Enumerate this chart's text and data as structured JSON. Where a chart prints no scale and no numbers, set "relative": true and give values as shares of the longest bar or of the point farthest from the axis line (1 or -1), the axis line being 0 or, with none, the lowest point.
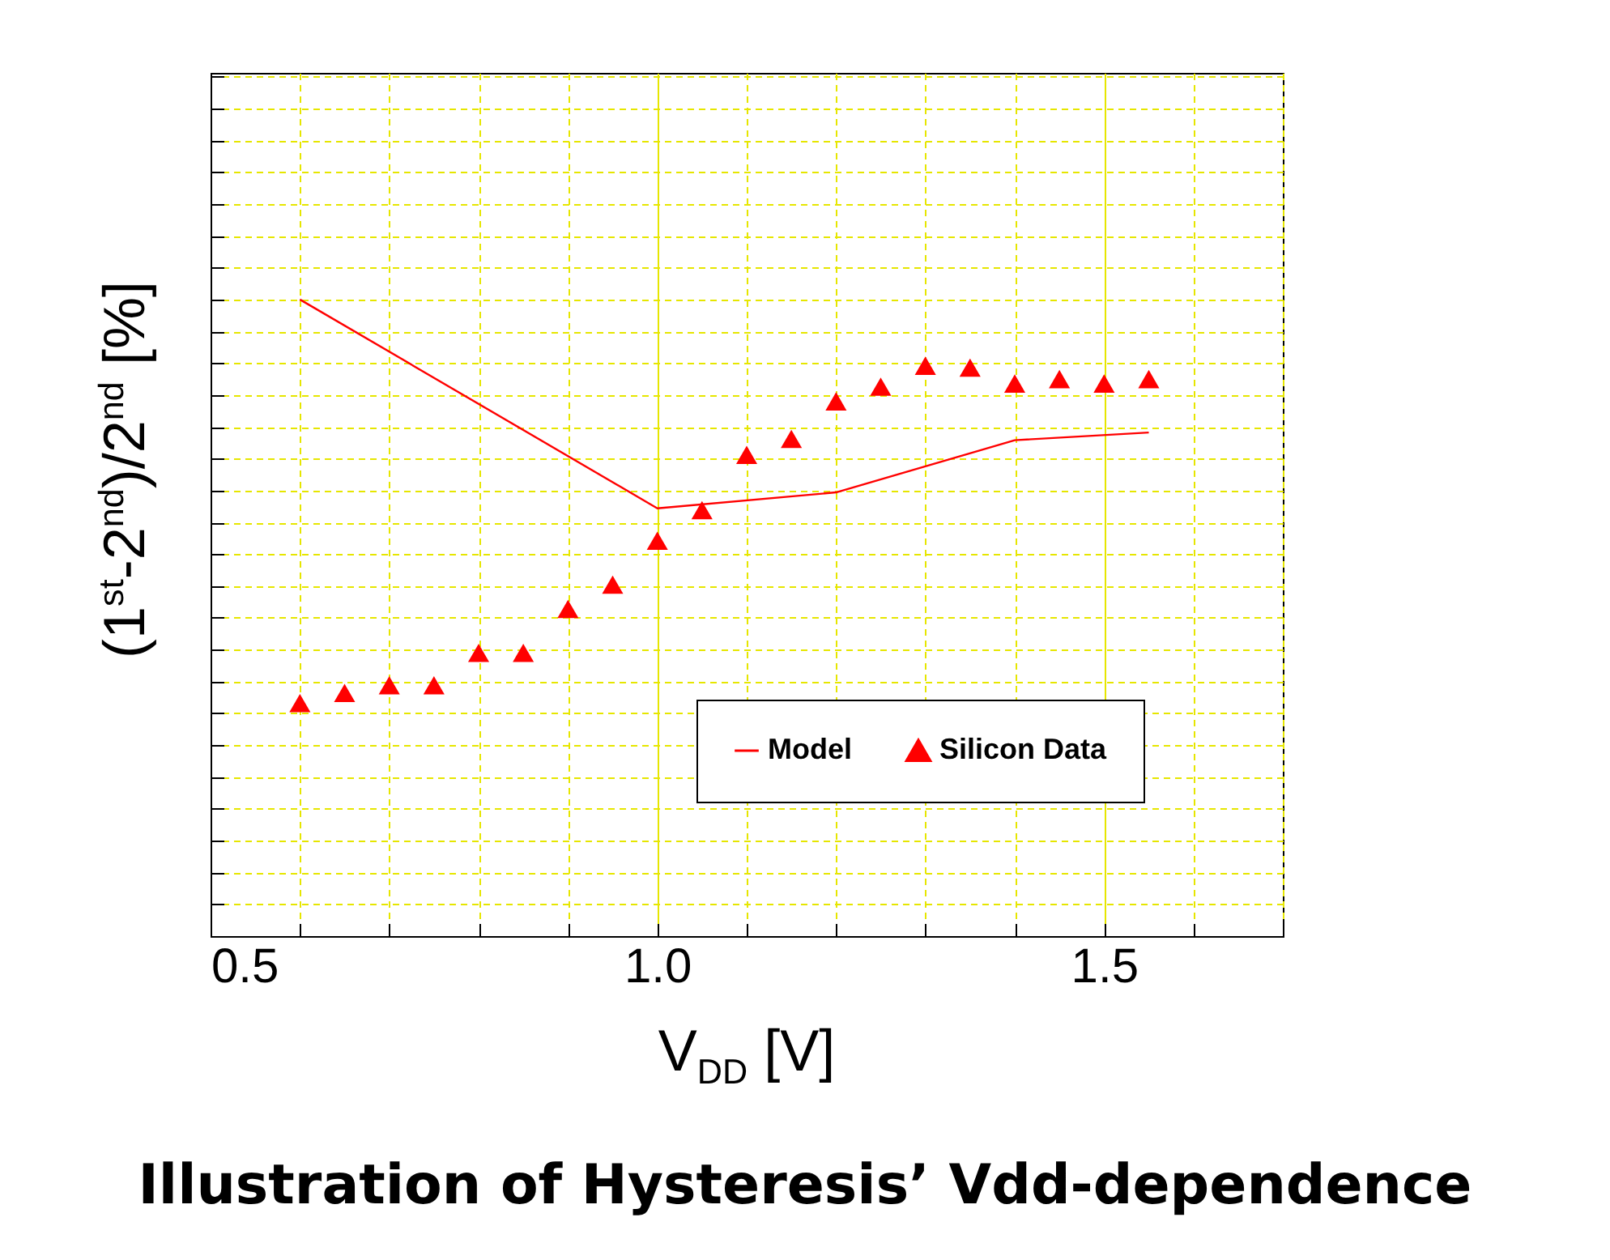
{
  "chart_data": {
    "type": "line",
    "title": "Illustration of Hysteresis’ Vdd-dependence",
    "xlabel": "V$_{DD}$ [V]",
    "ylabel": "(1$^{st}$-2$^{nd}$)/2$^{nd}$ [%]",
    "relative": true,
    "xlim": [
      0.5,
      1.7
    ],
    "xticks": [
      {
        "value": 0.5,
        "label": "0.5"
      },
      {
        "value": 0.6,
        "label": null
      },
      {
        "value": 0.7,
        "label": null
      },
      {
        "value": 0.8,
        "label": null
      },
      {
        "value": 0.9,
        "label": null
      },
      {
        "value": 1.0,
        "label": "1.0"
      },
      {
        "value": 1.1,
        "label": null
      },
      {
        "value": 1.2,
        "label": null
      },
      {
        "value": 1.3,
        "label": null
      },
      {
        "value": 1.4,
        "label": null
      },
      {
        "value": 1.5,
        "label": "1.5"
      },
      {
        "value": 1.6,
        "label": null
      },
      {
        "value": 1.7,
        "label": null
      }
    ],
    "grid": true,
    "legend": "bottom right",
    "tick_labels": "x",
    "series": [
      {
        "name": "Model",
        "color": "#ff0000",
        "x": [
          0.6,
          1.0,
          1.2,
          1.4,
          1.55
        ],
        "values": [
          1.0,
          0.672,
          0.697,
          0.779,
          0.791
        ]
      },
      {
        "name": "Silicon Data",
        "type": "scatter",
        "marker": "triangle",
        "color": "#ff0000",
        "x": [
          0.6,
          0.65,
          0.7,
          0.75,
          0.8,
          0.85,
          0.9,
          0.95,
          1.0,
          1.05,
          1.1,
          1.15,
          1.2,
          1.25,
          1.3,
          1.35,
          1.4,
          1.45,
          1.5,
          1.55
        ],
        "values": [
          0.366,
          0.382,
          0.394,
          0.394,
          0.445,
          0.445,
          0.514,
          0.552,
          0.621,
          0.669,
          0.756,
          0.781,
          0.84,
          0.863,
          0.896,
          0.893,
          0.868,
          0.875,
          0.868,
          0.875
        ]
      }
    ]
  }
}
